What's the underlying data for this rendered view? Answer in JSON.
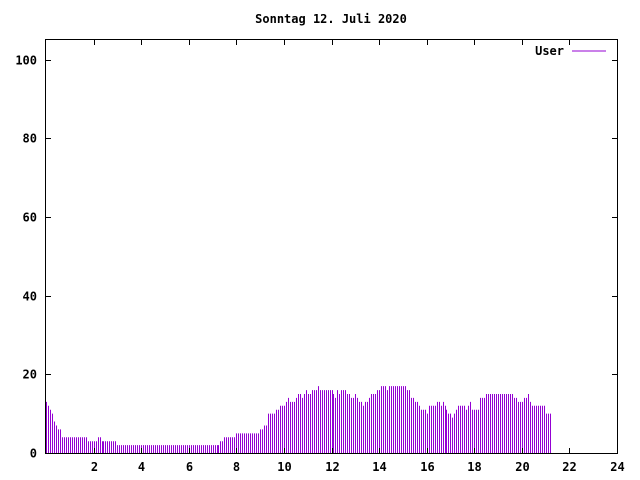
{
  "chart_data": {
    "type": "bar",
    "title": "Sonntag 12. Juli 2020",
    "xlabel": "",
    "ylabel": "",
    "xlim": [
      0,
      24
    ],
    "ylim": [
      0,
      105
    ],
    "xticks": [
      2,
      4,
      6,
      8,
      10,
      12,
      14,
      16,
      18,
      20,
      22,
      24
    ],
    "yticks": [
      0,
      20,
      40,
      60,
      80,
      100
    ],
    "grid": false,
    "legend_position": "top-right",
    "series": [
      {
        "name": "User",
        "color": "#9400d3",
        "sample_interval_minutes": 5,
        "values": [
          13,
          12,
          11,
          10,
          8,
          7,
          6,
          6,
          4,
          4,
          4,
          4,
          4,
          4,
          4,
          4,
          4,
          4,
          4,
          4,
          4,
          3,
          3,
          3,
          3,
          3,
          4,
          4,
          3,
          3,
          3,
          3,
          3,
          3,
          3,
          3,
          2,
          2,
          2,
          2,
          2,
          2,
          2,
          2,
          2,
          2,
          2,
          2,
          2,
          2,
          2,
          2,
          2,
          2,
          2,
          2,
          2,
          2,
          2,
          2,
          2,
          2,
          2,
          2,
          2,
          2,
          2,
          2,
          2,
          2,
          2,
          2,
          2,
          2,
          2,
          2,
          2,
          2,
          2,
          2,
          2,
          2,
          2,
          2,
          2,
          2,
          2,
          2,
          3,
          3,
          4,
          4,
          4,
          4,
          4,
          4,
          5,
          5,
          5,
          5,
          5,
          5,
          5,
          5,
          5,
          5,
          5,
          5,
          6,
          6,
          7,
          7,
          10,
          10,
          10,
          10,
          11,
          11,
          12,
          12,
          12,
          13,
          14,
          13,
          13,
          13,
          14,
          15,
          15,
          14,
          15,
          16,
          15,
          15,
          16,
          16,
          16,
          17,
          16,
          16,
          16,
          16,
          16,
          16,
          16,
          15,
          14,
          16,
          15,
          16,
          16,
          16,
          15,
          15,
          14,
          14,
          15,
          14,
          13,
          13,
          12,
          13,
          13,
          14,
          15,
          15,
          15,
          16,
          16,
          17,
          17,
          17,
          16,
          17,
          17,
          17,
          17,
          17,
          17,
          17,
          17,
          17,
          16,
          16,
          14,
          14,
          13,
          13,
          12,
          11,
          11,
          11,
          10,
          12,
          12,
          12,
          12,
          13,
          13,
          12,
          13,
          12,
          11,
          10,
          10,
          9,
          10,
          11,
          12,
          12,
          12,
          12,
          11,
          12,
          13,
          11,
          11,
          11,
          11,
          14,
          14,
          14,
          15,
          15,
          15,
          15,
          15,
          15,
          15,
          15,
          15,
          15,
          15,
          15,
          15,
          15,
          14,
          14,
          13,
          13,
          13,
          14,
          14,
          15,
          13,
          12,
          12,
          12,
          12,
          12,
          12,
          12,
          10,
          10,
          10
        ]
      }
    ]
  }
}
